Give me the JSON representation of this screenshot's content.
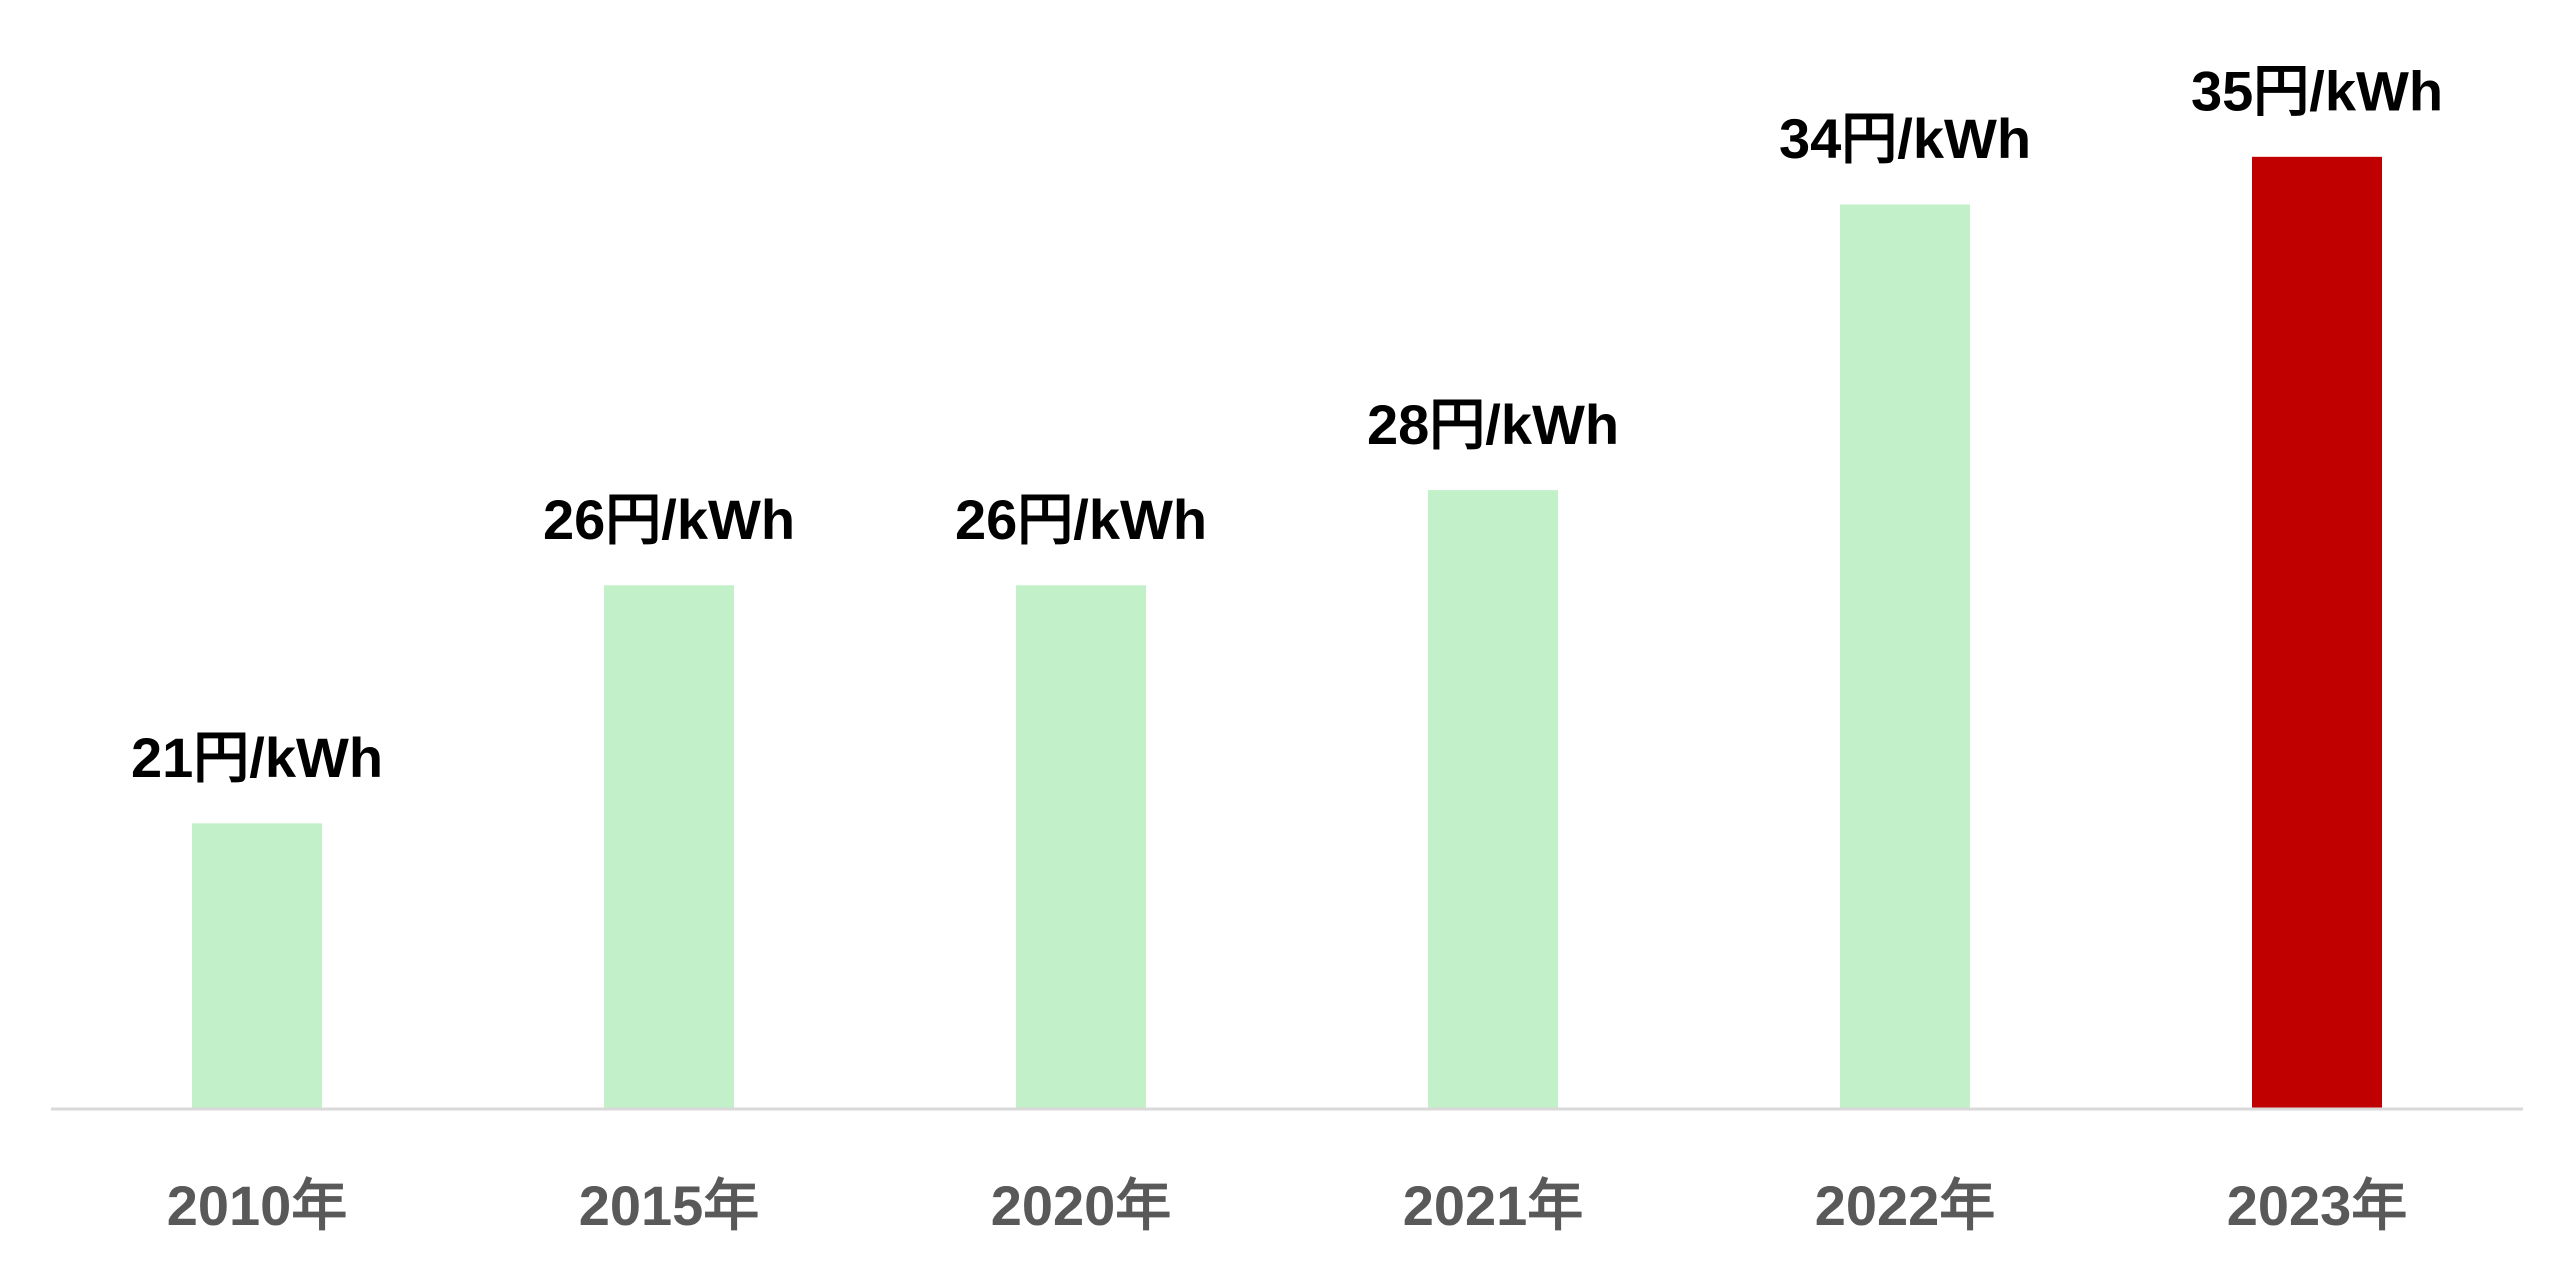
{
  "chart_data": {
    "type": "bar",
    "categories": [
      "2010年",
      "2015年",
      "2020年",
      "2021年",
      "2022年",
      "2023年"
    ],
    "values": [
      21,
      26,
      26,
      28,
      34,
      35
    ],
    "value_labels": [
      "21円/kWh",
      "26円/kWh",
      "26円/kWh",
      "28円/kWh",
      "34円/kWh",
      "35円/kWh"
    ],
    "colors": [
      "#c2f0c8",
      "#c2f0c8",
      "#c2f0c8",
      "#c2f0c8",
      "#c2f0c8",
      "#c00000"
    ],
    "ylim": [
      15,
      38
    ]
  }
}
